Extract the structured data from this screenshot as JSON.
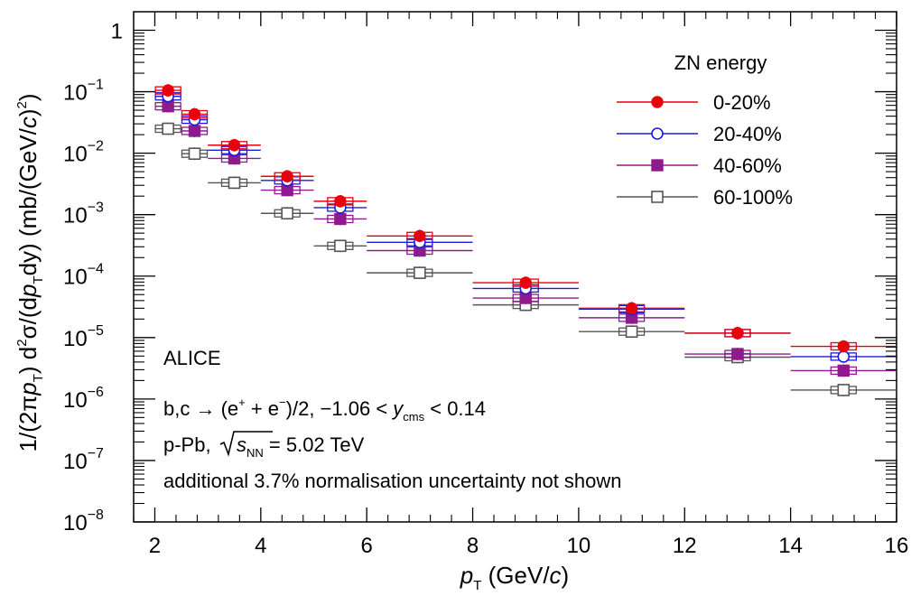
{
  "chart_data": {
    "type": "scatter",
    "title": "",
    "xlabel": "p_T (GeV/c)",
    "ylabel": "1/(2πp_T) d²σ/(dp_T dy) (mb/(GeV/c)²)",
    "xlim": [
      1.6,
      16
    ],
    "ylim": [
      1e-08,
      2
    ],
    "yscale": "log",
    "grid": false,
    "legend_position": "top-right",
    "legend_title": "ZN energy",
    "x": [
      2.25,
      2.75,
      3.5,
      4.5,
      5.5,
      7,
      9,
      11,
      13,
      15
    ],
    "x_err": [
      0.25,
      0.25,
      0.5,
      0.5,
      0.5,
      1,
      1,
      1,
      1,
      1
    ],
    "series": [
      {
        "name": "0-20%",
        "color": "#e8000b",
        "marker": "filled-circle",
        "values": [
          0.105,
          0.043,
          0.0135,
          0.0042,
          0.00165,
          0.00045,
          7.8e-05,
          3e-05,
          1.18e-05,
          7.2e-06
        ]
      },
      {
        "name": "20-40%",
        "color": "#1c1cd6",
        "marker": "open-circle",
        "values": [
          0.084,
          0.035,
          0.0112,
          0.0036,
          0.0013,
          0.000355,
          6.3e-05,
          2.9e-05,
          1.18e-05,
          4.9e-06
        ]
      },
      {
        "name": "40-60%",
        "color": "#8e1a8e",
        "marker": "filled-square",
        "values": [
          0.058,
          0.023,
          0.0082,
          0.0025,
          0.00085,
          0.00026,
          4.4e-05,
          2.1e-05,
          5.4e-06,
          2.9e-06
        ]
      },
      {
        "name": "60-100%",
        "color": "#555555",
        "marker": "open-square",
        "values": [
          0.025,
          0.0098,
          0.0033,
          0.00105,
          0.00031,
          0.000113,
          3.4e-05,
          1.25e-05,
          4.8e-06,
          1.4e-06
        ]
      }
    ],
    "x_ticks": [
      "2",
      "4",
      "6",
      "8",
      "10",
      "12",
      "14",
      "16"
    ],
    "y_ticks": [
      {
        "mant": "10",
        "exp": "−8"
      },
      {
        "mant": "10",
        "exp": "−7"
      },
      {
        "mant": "10",
        "exp": "−6"
      },
      {
        "mant": "10",
        "exp": "−5"
      },
      {
        "mant": "10",
        "exp": "−4"
      },
      {
        "mant": "10",
        "exp": "−3"
      },
      {
        "mant": "10",
        "exp": "−2"
      },
      {
        "mant": "10",
        "exp": "−1"
      },
      {
        "mant": "1",
        "exp": ""
      }
    ],
    "annotations": {
      "experiment": "ALICE",
      "process": "b,c → (e⁺ + e⁻)/2, −1.06 < y_cms < 0.14",
      "system": "p-Pb, √s_NN = 5.02 TeV",
      "note": "additional 3.7% normalisation uncertainty not shown"
    }
  },
  "labels": {
    "x_axis_main": "p",
    "x_axis_sub": "T",
    "x_axis_unit": " (GeV/",
    "x_axis_c": "c",
    "x_axis_close": ")",
    "y_axis_part1": "1/(2π",
    "y_axis_p1": "p",
    "y_axis_sub1": "T",
    "y_axis_part2": ") d",
    "y_axis_sup2": "2",
    "y_axis_part3": "σ/(d",
    "y_axis_p2": "p",
    "y_axis_sub2": "T",
    "y_axis_part4": "dy) (mb/(GeV/",
    "y_axis_c": "c",
    "y_axis_part5": ")",
    "y_axis_sup5": "2",
    "y_axis_part6": ")",
    "anno_experiment": "ALICE",
    "anno_proc_1": "b,c → (e",
    "anno_proc_sup1": "+",
    "anno_proc_2": " + e",
    "anno_proc_sup2": "−",
    "anno_proc_3": ")/2, −1.06 < ",
    "anno_proc_y": "y",
    "anno_proc_sub": "cms",
    "anno_proc_4": " < 0.14",
    "anno_sys_1": "p-Pb, ",
    "anno_sys_s": "s",
    "anno_sys_sub": "NN",
    "anno_sys_2": " = 5.02 TeV",
    "anno_note": "additional 3.7% normalisation uncertainty not shown"
  }
}
